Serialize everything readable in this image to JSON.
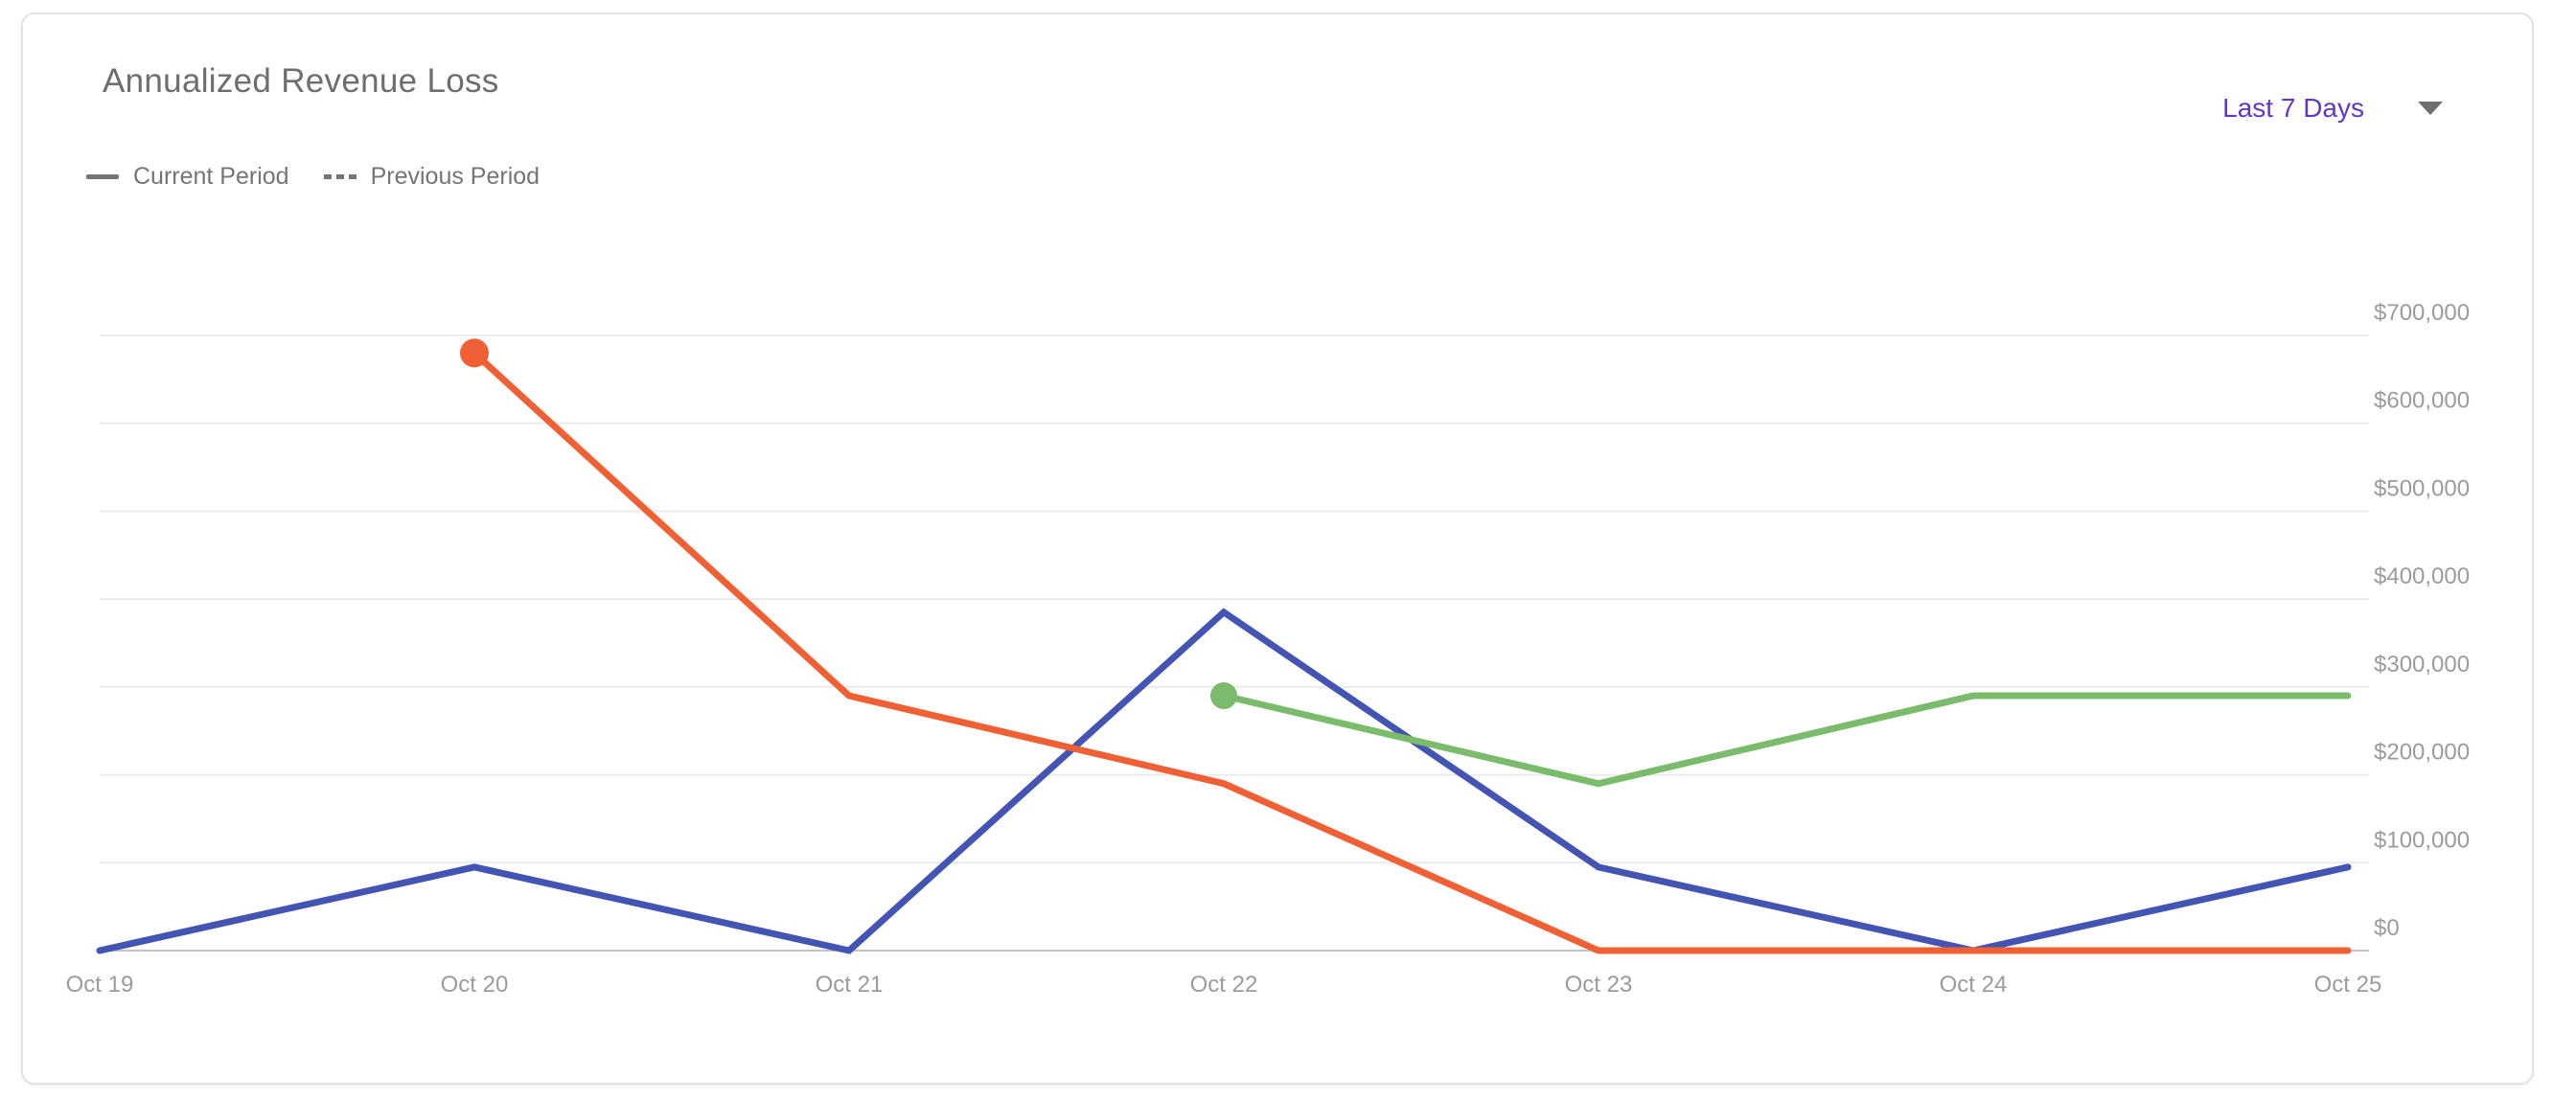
{
  "header": {
    "title": "Annualized Revenue Loss",
    "range_selector": {
      "value": "Last 7 Days",
      "icon": "chevron-down"
    }
  },
  "legend": {
    "items": [
      {
        "label": "Current Period",
        "line_style": "solid"
      },
      {
        "label": "Previous Period",
        "line_style": "dashed"
      }
    ]
  },
  "chart_data": {
    "type": "line",
    "title": "Annualized Revenue Loss",
    "categories": [
      "Oct 19",
      "Oct 20",
      "Oct 21",
      "Oct 22",
      "Oct 23",
      "Oct 24",
      "Oct 25"
    ],
    "series": [
      {
        "name": "blue-series",
        "color": "#4454b3",
        "line_style": "solid",
        "first_point_marker": false,
        "marker_radius": 0,
        "values": [
          0,
          95000,
          0,
          385000,
          95000,
          0,
          95000
        ]
      },
      {
        "name": "orange-series",
        "color": "#ef6134",
        "line_style": "solid",
        "first_point_marker": true,
        "marker_radius": 15,
        "values": [
          null,
          680000,
          290000,
          190000,
          0,
          0,
          0
        ]
      },
      {
        "name": "green-series",
        "color": "#7abb6c",
        "line_style": "solid",
        "first_point_marker": true,
        "marker_radius": 14,
        "values": [
          null,
          null,
          null,
          290000,
          190000,
          290000,
          290000
        ]
      }
    ],
    "ylim": [
      0,
      700000
    ],
    "y_ticks": [
      {
        "value": 0,
        "label": "$0"
      },
      {
        "value": 100000,
        "label": "$100,000"
      },
      {
        "value": 200000,
        "label": "$200,000"
      },
      {
        "value": 300000,
        "label": "$300,000"
      },
      {
        "value": 400000,
        "label": "$400,000"
      },
      {
        "value": 500000,
        "label": "$500,000"
      },
      {
        "value": 600000,
        "label": "$600,000"
      },
      {
        "value": 700000,
        "label": "$700,000"
      }
    ],
    "y_axis_position": "right",
    "grid": true,
    "legend_entries": [
      "Current Period",
      "Previous Period"
    ],
    "legend_position": "top-left"
  },
  "colors": {
    "accent_purple": "#6236c9",
    "title_text": "#6e6e6e",
    "legend_text": "#757575",
    "axis_text": "#9b9b9b",
    "gridline": "#ebebeb",
    "axis_line": "#c4c4c4",
    "card_border": "#e2e2e2",
    "series_blue": "#4454b3",
    "series_orange": "#ef6134",
    "series_green": "#7abb6c"
  }
}
